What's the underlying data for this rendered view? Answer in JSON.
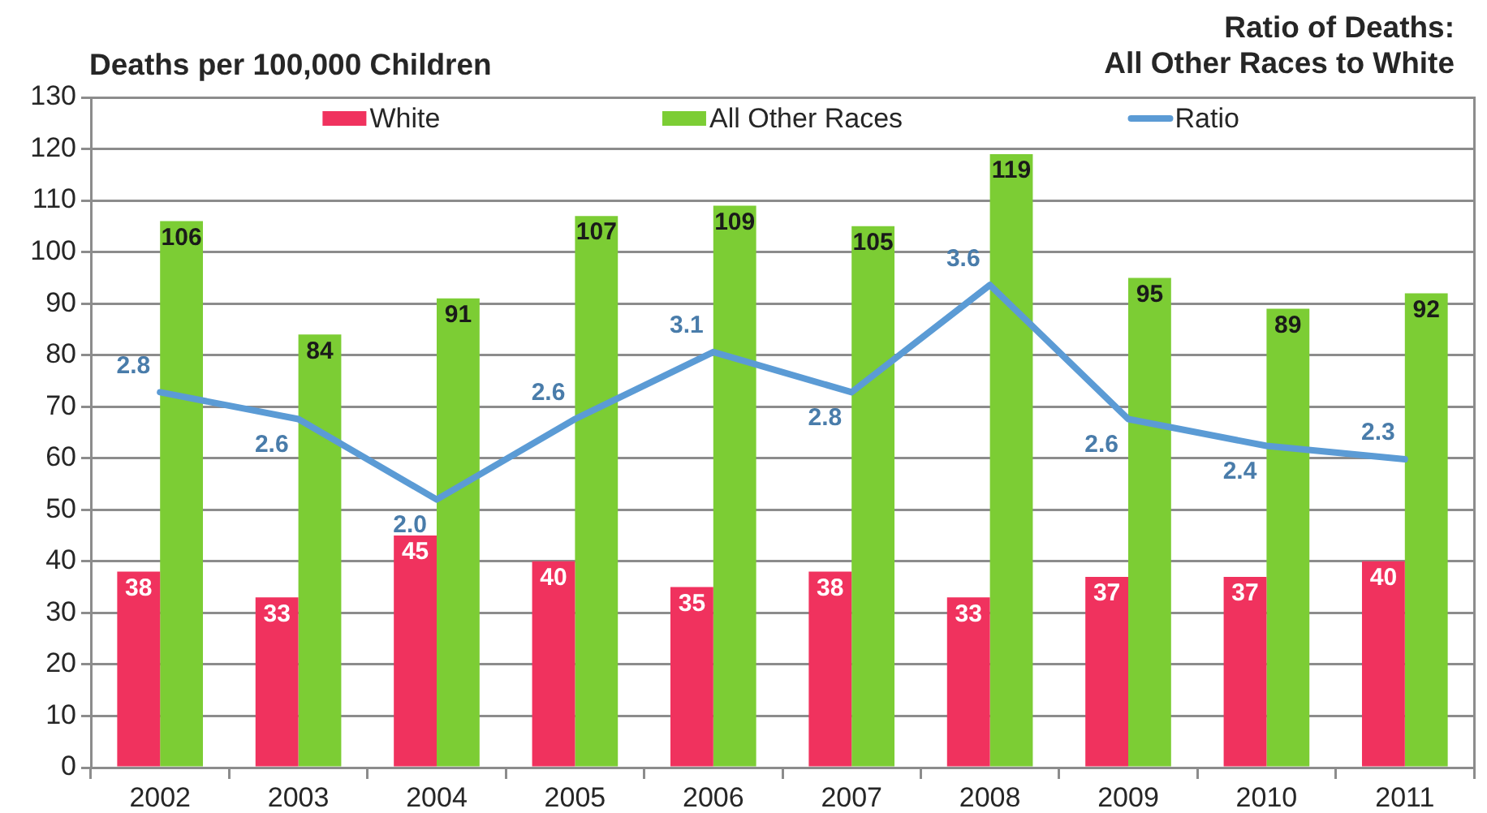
{
  "chart_data": {
    "type": "bar",
    "ylabel": "Deaths per 100,000 Children",
    "y2label": "Ratio of Deaths:\nAll Other Races to White",
    "categories": [
      "2002",
      "2003",
      "2004",
      "2005",
      "2006",
      "2007",
      "2008",
      "2009",
      "2010",
      "2011"
    ],
    "series": [
      {
        "name": "White",
        "color": "#f0325e",
        "values": [
          38,
          33,
          45,
          40,
          35,
          38,
          33,
          37,
          37,
          40
        ]
      },
      {
        "name": "All Other Races",
        "color": "#7ccd34",
        "values": [
          106,
          84,
          91,
          107,
          109,
          105,
          119,
          95,
          89,
          92
        ]
      },
      {
        "name": "Ratio",
        "type": "line",
        "axis": "y2",
        "color": "#5b9bd5",
        "values": [
          2.8,
          2.6,
          2.0,
          2.6,
          3.1,
          2.8,
          3.6,
          2.6,
          2.4,
          2.3
        ],
        "value_labels": [
          "2.8",
          "2.6",
          "2.0",
          "2.6",
          "3.1",
          "2.8",
          "3.6",
          "2.6",
          "2.4",
          "2.3"
        ]
      }
    ],
    "ylim": [
      0,
      130
    ],
    "yticks": [
      0,
      10,
      20,
      30,
      40,
      50,
      60,
      70,
      80,
      90,
      100,
      110,
      120,
      130
    ],
    "y2lim": [
      0,
      5
    ],
    "grid": "y",
    "legend": "top",
    "data_labels": true,
    "marker": "none"
  }
}
